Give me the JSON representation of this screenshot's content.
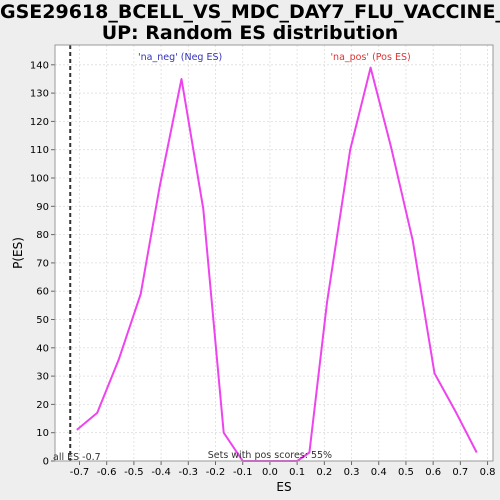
{
  "title_line1": "GSE29618_BCELL_VS_MDC_DAY7_FLU_VACCINE_",
  "title_line2": "UP: Random ES distribution",
  "colors": {
    "background": "#eeeeee",
    "plot_bg": "#ffffff",
    "curve": "#ee44ee",
    "neg_label": "#3333bb",
    "pos_label": "#dd3333",
    "grid": "#dddddd"
  },
  "chart_data": {
    "type": "line",
    "xlabel": "ES",
    "ylabel": "P(ES)",
    "xlim": [
      -0.79,
      0.82
    ],
    "ylim": [
      0,
      147
    ],
    "xticks": [
      -0.7,
      -0.6,
      -0.5,
      -0.4,
      -0.3,
      -0.2,
      -0.1,
      0.0,
      0.1,
      0.2,
      0.3,
      0.4,
      0.5,
      0.6,
      0.7,
      0.8
    ],
    "xtick_labels": [
      "-0.7",
      "-0.6",
      "-0.5",
      "-0.4",
      "-0.3",
      "-0.2",
      "-0.1",
      "0.0",
      "0.1",
      "0.2",
      "0.3",
      "0.4",
      "0.5",
      "0.6",
      "0.7",
      "0.8"
    ],
    "yticks": [
      0,
      10,
      20,
      30,
      40,
      50,
      60,
      70,
      80,
      90,
      100,
      110,
      120,
      130,
      140
    ],
    "grid": true,
    "series": [
      {
        "x": [
          -0.71,
          -0.635,
          -0.555,
          -0.475,
          -0.405,
          -0.325,
          -0.245,
          -0.17,
          -0.1,
          0.1,
          0.145,
          0.21,
          0.295,
          0.37,
          0.445,
          0.525,
          0.605,
          0.685,
          0.76
        ],
        "y": [
          11,
          17,
          36,
          59,
          97,
          135,
          89,
          10,
          0,
          0,
          3,
          56,
          110,
          139,
          111,
          78,
          31,
          17,
          3
        ]
      }
    ],
    "vline": {
      "x": -0.734,
      "label": "all ES -0.7"
    },
    "annotations": {
      "neg": "'na_neg' (Neg ES)",
      "pos": "'na_pos' (Pos ES)",
      "bottom": "Sets with pos scores: 55%"
    }
  }
}
